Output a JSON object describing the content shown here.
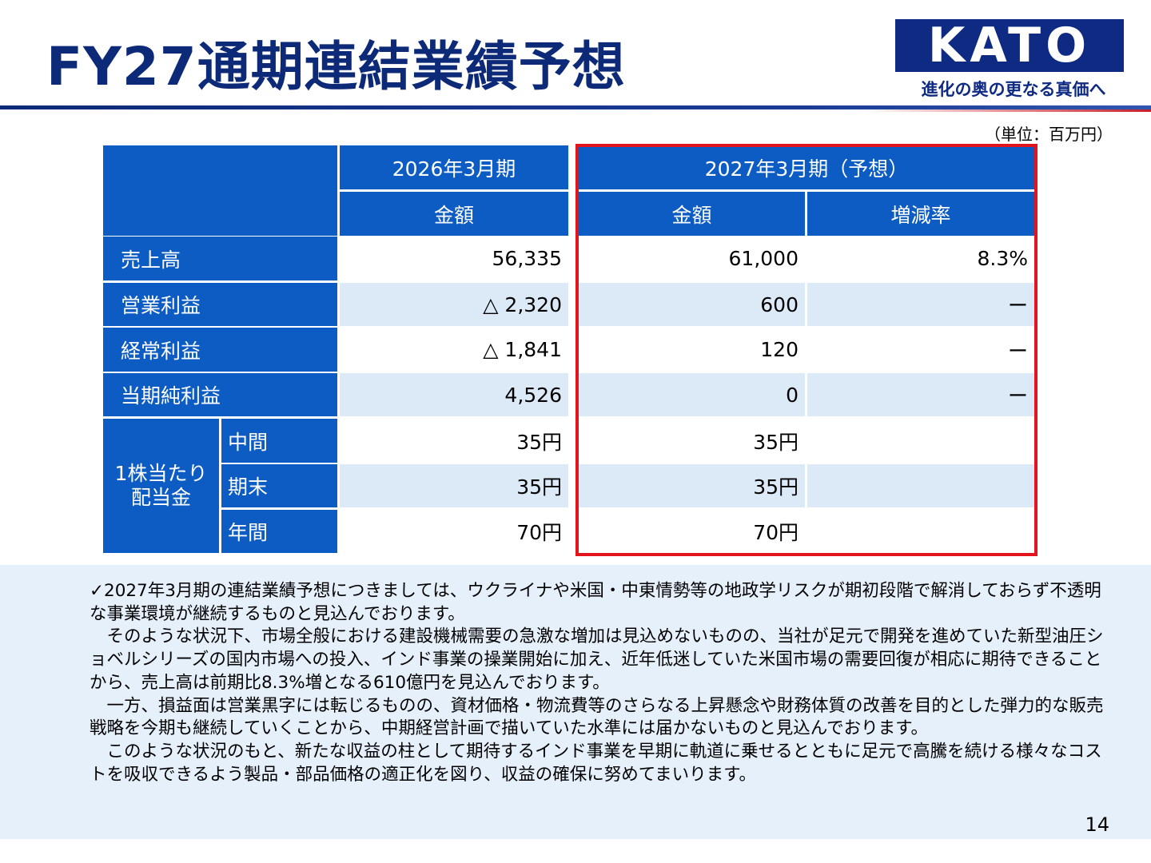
{
  "header": {
    "title": "FY27通期連結業績予想",
    "logo_text": "KATO",
    "tagline": "進化の奥の更なる真価へ"
  },
  "unit_note": "（単位：百万円）",
  "table": {
    "period_prev": "2026年3月期",
    "period_next": "2027年3月期（予想）",
    "col_amount": "金額",
    "col_change": "増減率",
    "rows": [
      {
        "label": "売上高",
        "prev": "56,335",
        "next": "61,000",
        "change": "8.3%"
      },
      {
        "label": "営業利益",
        "prev": "△ 2,320",
        "next": "600",
        "change": "ー"
      },
      {
        "label": "経常利益",
        "prev": "△ 1,841",
        "next": "120",
        "change": "ー"
      },
      {
        "label": "当期純利益",
        "prev": "4,526",
        "next": "0",
        "change": "ー"
      }
    ],
    "dividend": {
      "label_line1": "1株当たり",
      "label_line2": "配当金",
      "rows": [
        {
          "label": "中間",
          "prev": "35円",
          "next": "35円"
        },
        {
          "label": "期末",
          "prev": "35円",
          "next": "35円"
        },
        {
          "label": "年間",
          "prev": "70円",
          "next": "70円"
        }
      ]
    }
  },
  "commentary": {
    "paragraphs": [
      "✓2027年3月期の連結業績予想につきましては、ウクライナや米国・中東情勢等の地政学リスクが期初段階で解消しておらず不透明な事業環境が継続するものと見込んでおります。",
      "　そのような状況下、市場全般における建設機械需要の急激な増加は見込めないものの、当社が足元で開発を進めていた新型油圧ショベルシリーズの国内市場への投入、インド事業の操業開始に加え、近年低迷していた米国市場の需要回復が相応に期待できることから、売上高は前期比8.3%増となる610億円を見込んでおります。",
      "　一方、損益面は営業黒字には転じるものの、資材価格・物流費等のさらなる上昇懸念や財務体質の改善を目的とした弾力的な販売戦略を今期も継続していくことから、中期経営計画で描いていた水準には届かないものと見込んでおります。",
      "　このような状況のもと、新たな収益の柱として期待するインド事業を早期に軌道に乗せるとともに足元で高騰を続ける様々なコストを吸収できるよう製品・部品価格の適正化を図り、収益の確保に努めてまいります。"
    ]
  },
  "page_number": "14",
  "colors": {
    "title": "#0d2a78",
    "logo_bg": "#0e2a82",
    "table_header": "#0c5cc4",
    "row_alt": "#dce9f6",
    "highlight_border": "#e3141b",
    "commentary_bg": "#e5f0fa"
  }
}
